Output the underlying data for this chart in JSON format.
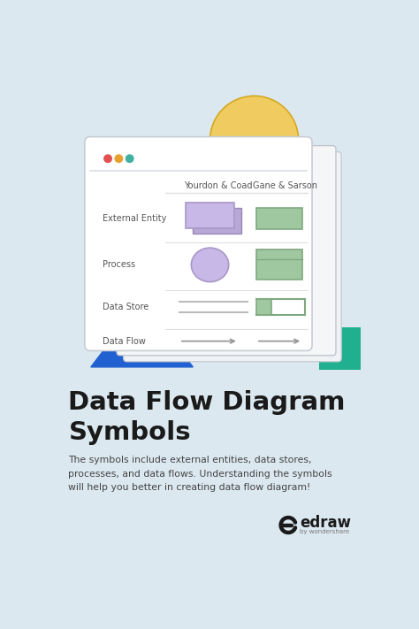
{
  "bg_color": "#dce8f0",
  "title_line1": "Data Flow Diagram",
  "title_line2": "Symbols",
  "title_color": "#1a1a1a",
  "subtitle": "The symbols include external entities, data stores,\nprocesses, and data flows. Understanding the symbols\nwill help you better in creating data flow diagram!",
  "subtitle_color": "#444444",
  "window_bg": "#ffffff",
  "window_border": "#c8cdd5",
  "dot_colors": [
    "#e05050",
    "#e8a030",
    "#40b0a0"
  ],
  "col_header_yourdon": "Yourdon & Coad",
  "col_header_gane": "Gane & Sarson",
  "row_labels": [
    "External Entity",
    "Process",
    "Data Store",
    "Data Flow"
  ],
  "purple_fill": "#c8b8e8",
  "purple_border": "#a898c8",
  "green_fill": "#a0c8a0",
  "green_border": "#80a880",
  "yellow_color": "#f0cc60",
  "yellow_border": "#d4a820",
  "blue_triangle": "#2060d0",
  "teal_rect": "#20b090",
  "line_color": "#bbbbbb",
  "arrow_color": "#999999",
  "row_label_color": "#555555",
  "header_color": "#555555",
  "sep_color": "#e0e0e0",
  "edraw_color": "#1a1a1a",
  "sub_color": "#777777"
}
